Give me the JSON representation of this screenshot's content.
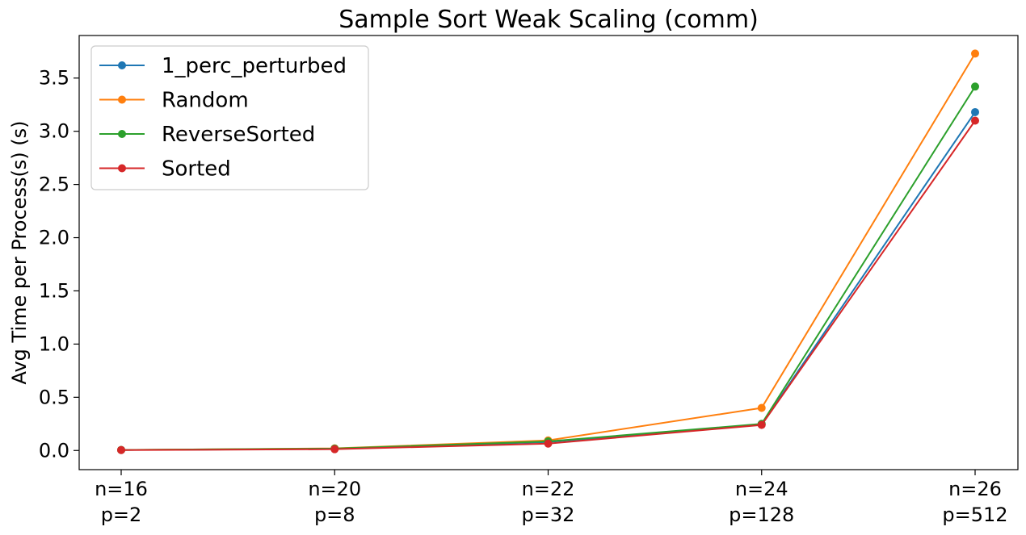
{
  "chart_data": {
    "type": "line",
    "title": "Sample Sort Weak Scaling (comm)",
    "xlabel": "",
    "ylabel": "Avg Time per Process(s) (s)",
    "categories": [
      [
        "n=16",
        "p=2"
      ],
      [
        "n=20",
        "p=8"
      ],
      [
        "n=22",
        "p=32"
      ],
      [
        "n=24",
        "p=128"
      ],
      [
        "n=26",
        "p=512"
      ]
    ],
    "yticks": [
      "0.0",
      "0.5",
      "1.0",
      "1.5",
      "2.0",
      "2.5",
      "3.0",
      "3.5"
    ],
    "ylim": [
      -0.18,
      3.9
    ],
    "grid": false,
    "legend_position": "upper-left",
    "series": [
      {
        "name": "1_perc_perturbed",
        "color": "#1f77b4",
        "values": [
          0.005,
          0.015,
          0.08,
          0.245,
          3.18
        ]
      },
      {
        "name": "Random",
        "color": "#ff7f0e",
        "values": [
          0.005,
          0.02,
          0.095,
          0.4,
          3.73
        ]
      },
      {
        "name": "ReverseSorted",
        "color": "#2ca02c",
        "values": [
          0.005,
          0.018,
          0.085,
          0.25,
          3.42
        ]
      },
      {
        "name": "Sorted",
        "color": "#d62728",
        "values": [
          0.004,
          0.012,
          0.065,
          0.24,
          3.1
        ]
      }
    ]
  }
}
